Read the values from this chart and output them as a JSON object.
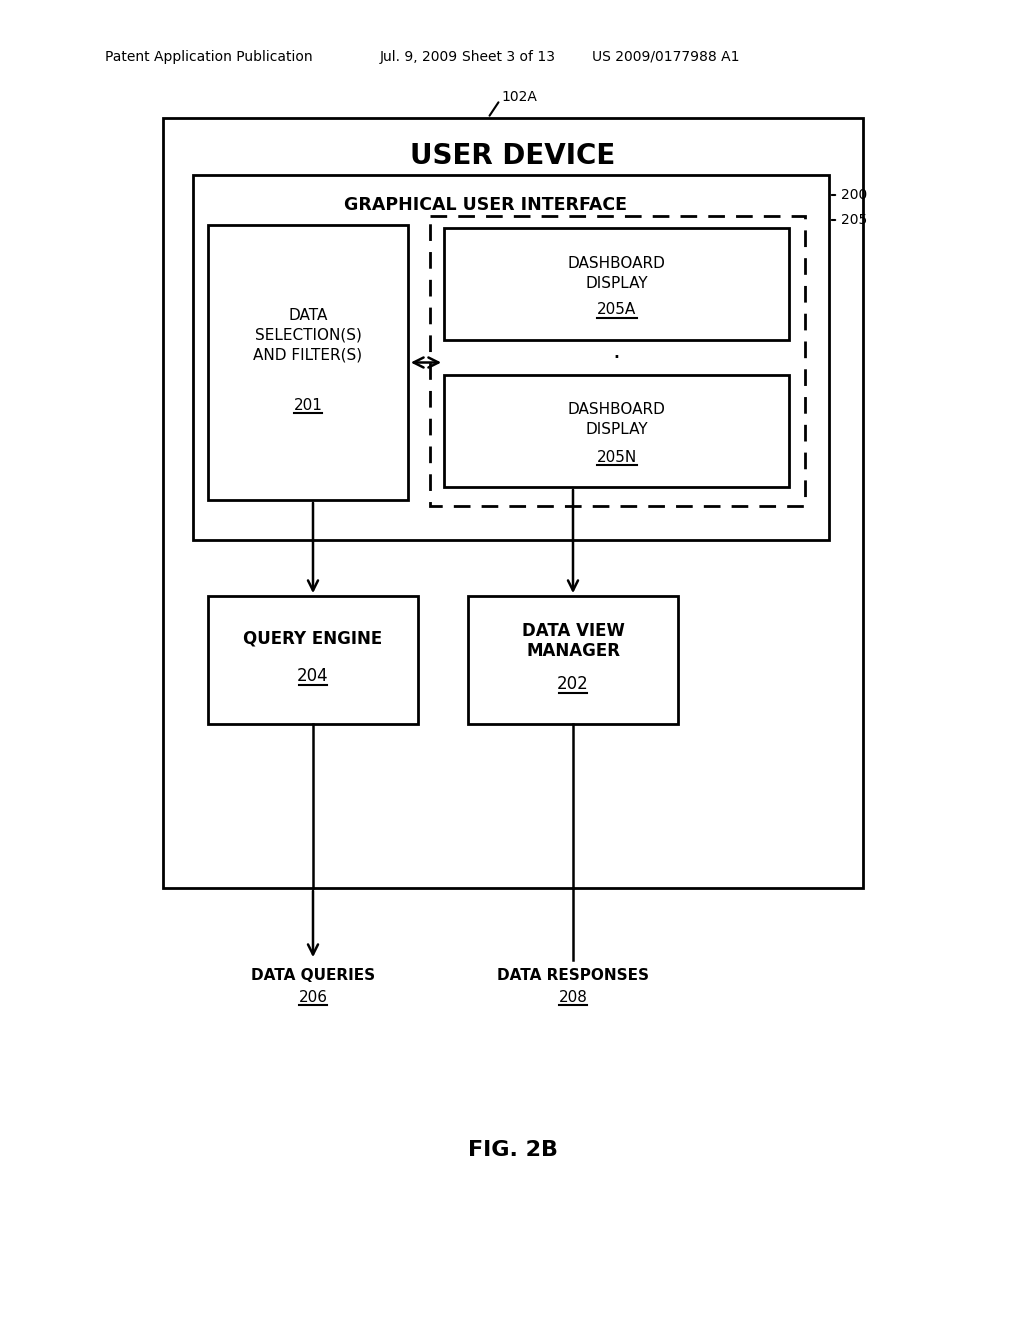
{
  "bg_color": "#ffffff",
  "header_line1": "Patent Application Publication",
  "header_line2": "Jul. 9, 2009",
  "header_line3": "Sheet 3 of 13",
  "header_line4": "US 2009/0177988 A1",
  "ref_102A": "102A",
  "ref_200": "200",
  "ref_205": "205",
  "user_device_label": "USER DEVICE",
  "gui_label": "GRAPHICAL USER INTERFACE",
  "data_sel_line1": "DATA",
  "data_sel_line2": "SELECTION(S)",
  "data_sel_line3": "AND FILTER(S)",
  "data_sel_num": "201",
  "dash_a_line1": "DASHBOARD",
  "dash_a_line2": "DISPLAY",
  "dash_a_num": "205A",
  "dash_n_line1": "DASHBOARD",
  "dash_n_line2": "DISPLAY",
  "dash_n_num": "205N",
  "qe_line1": "QUERY ENGINE",
  "qe_num": "204",
  "dvm_line1": "DATA VIEW",
  "dvm_line2": "MANAGER",
  "dvm_num": "202",
  "dq_line1": "DATA QUERIES",
  "dq_num": "206",
  "dr_line1": "DATA RESPONSES",
  "dr_num": "208",
  "fig_label": "FIG. 2B"
}
